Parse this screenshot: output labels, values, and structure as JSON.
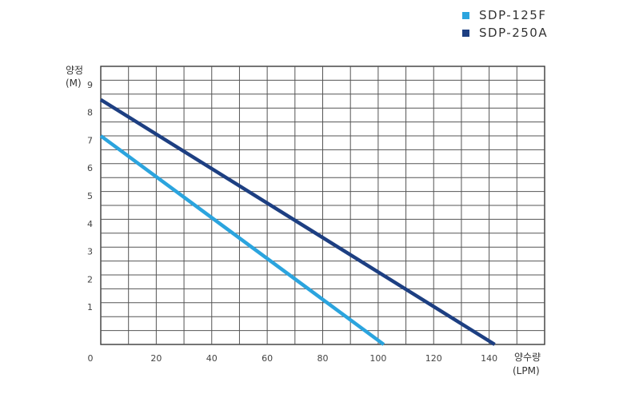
{
  "chart_data": {
    "type": "line",
    "ylabel": "양정",
    "yunit": "(M)",
    "xlabel": "양수량",
    "xunit": "(LPM)",
    "xlim": [
      0,
      160
    ],
    "ylim": [
      0,
      10
    ],
    "xticks": [
      0,
      20,
      40,
      60,
      80,
      100,
      120,
      140
    ],
    "yticks": [
      1,
      2,
      3,
      4,
      5,
      6,
      7,
      8,
      9
    ],
    "grid": true,
    "legend_position": "top-right",
    "series": [
      {
        "name": "SDP-125F",
        "color": "#2ba4de",
        "x": [
          0,
          102
        ],
        "y": [
          7.5,
          0
        ]
      },
      {
        "name": "SDP-250A",
        "color": "#1d3f82",
        "x": [
          0,
          142
        ],
        "y": [
          8.8,
          0
        ]
      }
    ]
  }
}
